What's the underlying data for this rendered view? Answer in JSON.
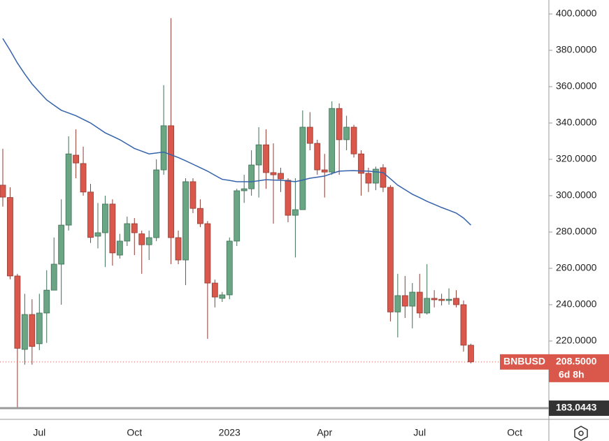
{
  "chart_data": {
    "type": "candlestick",
    "symbol": "BNBUSD",
    "categories": [
      null,
      null,
      null,
      null,
      null,
      "Jul",
      null,
      null,
      null,
      null,
      null,
      null,
      null,
      null,
      null,
      null,
      null,
      null,
      "Oct",
      null,
      null,
      null,
      null,
      null,
      null,
      null,
      null,
      null,
      null,
      null,
      null,
      "2023",
      null,
      null,
      null,
      null,
      null,
      null,
      null,
      null,
      null,
      null,
      null,
      null,
      "Apr",
      null,
      null,
      null,
      null,
      null,
      null,
      null,
      null,
      null,
      null,
      null,
      null,
      "Jul",
      null,
      null,
      null,
      null,
      null,
      null,
      null,
      null,
      null,
      null,
      null,
      null,
      "Oct"
    ],
    "open": [
      305.8,
      299,
      255.8,
      215.4,
      234.6,
      218.5,
      235.4,
      248,
      262.3,
      283.8,
      322.3,
      317.7,
      302,
      277.7,
      279.6,
      295.4,
      267.3,
      275,
      284.6,
      279,
      273,
      276.9,
      314.2,
      338.5,
      276.9,
      264.6,
      307.7,
      293,
      284.6,
      251.9,
      243.5,
      245.4,
      275,
      302.7,
      303.8,
      316.9,
      328,
      312.7,
      312.3,
      308.5,
      289.2,
      292.3,
      337.7,
      328.8,
      314.2,
      313,
      348,
      330.8,
      337.7,
      323,
      312.3,
      306.9,
      315.4,
      304.6,
      236,
      245,
      239.2,
      246.9,
      235.4,
      243.5,
      243,
      242.3,
      243.5,
      240,
      217.7,
      null,
      null,
      null,
      null,
      null,
      null
    ],
    "high": [
      325.8,
      304.6,
      257,
      246,
      243,
      246,
      259,
      277,
      298,
      332.7,
      336.5,
      327,
      306.5,
      296,
      300,
      298,
      279,
      288.5,
      287.7,
      280.8,
      280.8,
      320,
      360.8,
      397.7,
      280.8,
      309.6,
      309.6,
      298,
      286,
      253.8,
      247,
      277,
      303.8,
      311.5,
      325,
      337.7,
      336.5,
      328.8,
      315.4,
      309.6,
      309.6,
      346.9,
      346,
      330.8,
      323,
      351.9,
      350.8,
      344,
      339,
      325,
      315.4,
      316,
      317.3,
      305.8,
      257,
      255.8,
      251.9,
      257,
      262.3,
      248,
      246,
      249,
      248,
      242.3,
      218.5,
      null,
      null,
      null,
      null,
      null,
      null
    ],
    "low": [
      294,
      254,
      183.0443,
      207,
      207,
      215,
      219,
      248,
      240,
      280.8,
      309.6,
      300,
      274,
      271,
      260.8,
      261.5,
      265.4,
      272.3,
      267.3,
      257,
      264.6,
      275,
      311.5,
      262.3,
      262.3,
      250.8,
      290.4,
      282.7,
      221.2,
      238.5,
      241.5,
      243,
      272.3,
      296,
      300,
      299,
      303.8,
      284.6,
      302,
      285.4,
      266,
      292.3,
      325,
      311.5,
      299,
      311.5,
      311.5,
      325,
      321,
      300,
      302,
      303,
      302,
      230.8,
      222,
      232.7,
      227,
      232.7,
      234.6,
      238.5,
      239.6,
      240,
      238.5,
      214.2,
      207.7,
      null,
      null,
      null,
      null,
      null,
      null
    ],
    "close": [
      299.2,
      255.8,
      216,
      234.6,
      217,
      235.4,
      248,
      262.3,
      283.8,
      323,
      318,
      302,
      277,
      279.6,
      295.4,
      268.5,
      275,
      284.6,
      279.6,
      273,
      276.9,
      314.2,
      338.5,
      276.9,
      264.6,
      307.7,
      293,
      284.6,
      251.9,
      244.2,
      245.4,
      275,
      302.7,
      303.8,
      316.9,
      328,
      312.7,
      311.5,
      309.2,
      289.2,
      292.3,
      337.7,
      328.8,
      314.2,
      313,
      348,
      330.8,
      337.7,
      323,
      312.3,
      306.9,
      314.6,
      304.6,
      236,
      245,
      239.2,
      246.9,
      235.4,
      243.5,
      242.7,
      242.3,
      243,
      240,
      217.7,
      208.5,
      null,
      null,
      null,
      null,
      null,
      null
    ],
    "up_color": "#6aa584",
    "down_color": "#d9584b",
    "ma": {
      "color": "#3563ab",
      "values": [
        386.5,
        380,
        373,
        367,
        361.5,
        357,
        352.7,
        349.8,
        347,
        345.5,
        344,
        342,
        340,
        337.3,
        334.6,
        332.7,
        330.8,
        328.4,
        326,
        324.5,
        323,
        323.5,
        324,
        322.5,
        321,
        319.2,
        317.3,
        315.4,
        313.5,
        311.2,
        309,
        308.4,
        307.7,
        307.7,
        307.7,
        308.2,
        308.8,
        308.6,
        308.5,
        308.1,
        307.7,
        308.6,
        309.6,
        310.2,
        310.8,
        312.2,
        313.5,
        313.7,
        313.8,
        313.6,
        313.5,
        313.1,
        312.7,
        309.3,
        305.8,
        303.3,
        300.8,
        298.9,
        296.9,
        295.2,
        293.5,
        292,
        290.4,
        287.7,
        283.8,
        null,
        null,
        null,
        null,
        null,
        null
      ]
    },
    "ylim": [
      176.9,
      407.7
    ],
    "yticks": [
      {
        "value": 220,
        "label": "220.0000"
      },
      {
        "value": 240,
        "label": "240.0000"
      },
      {
        "value": 260,
        "label": "260.0000"
      },
      {
        "value": 280,
        "label": "280.0000"
      },
      {
        "value": 300,
        "label": "300.0000"
      },
      {
        "value": 320,
        "label": "320.0000"
      },
      {
        "value": 340,
        "label": "340.0000"
      },
      {
        "value": 360,
        "label": "360.0000"
      },
      {
        "value": 380,
        "label": "380.0000"
      },
      {
        "value": 400,
        "label": "400.0000"
      }
    ],
    "last_price": {
      "value": 208.5,
      "label": "208.5000",
      "countdown": "6d 8h"
    },
    "low_line": {
      "value": 183.0443,
      "label": "183.0443"
    }
  }
}
